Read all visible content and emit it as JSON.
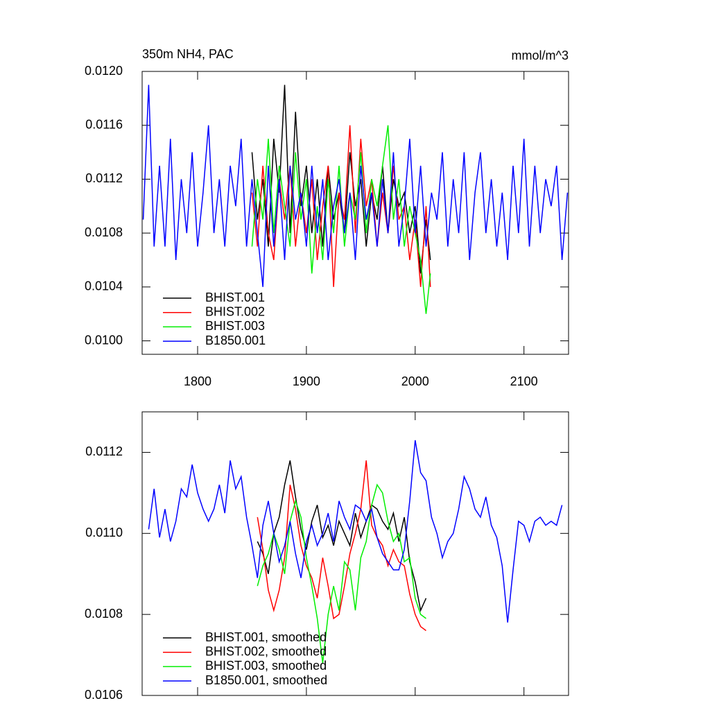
{
  "chart_data": [
    {
      "type": "line",
      "title": "350m NH4, PAC",
      "units": "mmol/m^3",
      "legend": "lower left",
      "xtick_labels": true,
      "xlim": [
        1749,
        2141
      ],
      "xticks": [
        1800,
        1900,
        2000,
        2100
      ],
      "ylim": [
        0.0099,
        0.012
      ],
      "yticks": [
        {
          "value": 0.01,
          "label": "0.0100"
        },
        0.0104,
        0.0108,
        0.0112,
        0.0116,
        {
          "value": 0.012,
          "label": "0.0120"
        }
      ],
      "series": [
        {
          "name": "BHIST.001",
          "color": "#000000",
          "x": [
            1850,
            1855,
            1860,
            1865,
            1870,
            1875,
            1880,
            1885,
            1890,
            1895,
            1900,
            1905,
            1910,
            1915,
            1920,
            1925,
            1930,
            1935,
            1940,
            1945,
            1950,
            1955,
            1960,
            1965,
            1970,
            1975,
            1980,
            1985,
            1990,
            1995,
            2000,
            2005,
            2010,
            2014
          ],
          "values": [
            0.0114,
            0.0109,
            0.0112,
            0.0107,
            0.0115,
            0.0111,
            0.0119,
            0.0108,
            0.0117,
            0.011,
            0.0113,
            0.0108,
            0.0112,
            0.0107,
            0.0113,
            0.0109,
            0.0111,
            0.0108,
            0.0114,
            0.011,
            0.0112,
            0.0107,
            0.0111,
            0.0109,
            0.0113,
            0.0108,
            0.0112,
            0.011,
            0.0111,
            0.0108,
            0.011,
            0.0105,
            0.0109,
            0.0106
          ]
        },
        {
          "name": "BHIST.002",
          "color": "#ff0000",
          "x": [
            1850,
            1855,
            1860,
            1865,
            1870,
            1875,
            1880,
            1885,
            1890,
            1895,
            1900,
            1905,
            1910,
            1915,
            1920,
            1925,
            1930,
            1935,
            1940,
            1945,
            1950,
            1955,
            1960,
            1965,
            1970,
            1975,
            1980,
            1985,
            1990,
            1995,
            2000,
            2005,
            2010,
            2014
          ],
          "values": [
            0.0111,
            0.0107,
            0.0113,
            0.0108,
            0.0106,
            0.0112,
            0.0109,
            0.0113,
            0.0107,
            0.0111,
            0.0108,
            0.0112,
            0.0106,
            0.011,
            0.0113,
            0.0104,
            0.0111,
            0.0109,
            0.0116,
            0.0108,
            0.0115,
            0.011,
            0.0112,
            0.0107,
            0.0111,
            0.0108,
            0.0113,
            0.0109,
            0.011,
            0.0106,
            0.0109,
            0.0104,
            0.011,
            0.0104
          ]
        },
        {
          "name": "BHIST.003",
          "color": "#00ee00",
          "x": [
            1850,
            1855,
            1860,
            1865,
            1870,
            1875,
            1880,
            1885,
            1890,
            1895,
            1900,
            1905,
            1910,
            1915,
            1920,
            1925,
            1930,
            1935,
            1940,
            1945,
            1950,
            1955,
            1960,
            1965,
            1970,
            1975,
            1980,
            1985,
            1990,
            1995,
            2000,
            2005,
            2010,
            2014
          ],
          "values": [
            0.0107,
            0.0112,
            0.0109,
            0.0115,
            0.0108,
            0.0113,
            0.011,
            0.0107,
            0.0114,
            0.0109,
            0.0112,
            0.0105,
            0.011,
            0.0106,
            0.0112,
            0.0108,
            0.0113,
            0.0107,
            0.0111,
            0.0109,
            0.0114,
            0.0108,
            0.0112,
            0.011,
            0.0113,
            0.0116,
            0.0109,
            0.0112,
            0.0107,
            0.011,
            0.0108,
            0.0106,
            0.0102,
            0.0105
          ]
        },
        {
          "name": "B1850.001",
          "color": "#0000ff",
          "x": [
            1750,
            1755,
            1760,
            1765,
            1770,
            1775,
            1780,
            1785,
            1790,
            1795,
            1800,
            1805,
            1810,
            1815,
            1820,
            1825,
            1830,
            1835,
            1840,
            1845,
            1850,
            1855,
            1860,
            1865,
            1870,
            1875,
            1880,
            1885,
            1890,
            1895,
            1900,
            1905,
            1910,
            1915,
            1920,
            1925,
            1930,
            1935,
            1940,
            1945,
            1950,
            1955,
            1960,
            1965,
            1970,
            1975,
            1980,
            1985,
            1990,
            1995,
            2000,
            2005,
            2010,
            2015,
            2020,
            2025,
            2030,
            2035,
            2040,
            2045,
            2050,
            2055,
            2060,
            2065,
            2070,
            2075,
            2080,
            2085,
            2090,
            2095,
            2100,
            2105,
            2110,
            2115,
            2120,
            2125,
            2130,
            2135,
            2140
          ],
          "values": [
            0.0109,
            0.0119,
            0.0107,
            0.0113,
            0.0107,
            0.0115,
            0.0106,
            0.0112,
            0.0108,
            0.0114,
            0.0107,
            0.0111,
            0.0116,
            0.0108,
            0.0112,
            0.0107,
            0.0113,
            0.011,
            0.0115,
            0.0107,
            0.0112,
            0.0108,
            0.0104,
            0.0113,
            0.0107,
            0.0112,
            0.0106,
            0.0113,
            0.0109,
            0.0111,
            0.0107,
            0.0113,
            0.0108,
            0.0112,
            0.0106,
            0.011,
            0.0112,
            0.0108,
            0.0111,
            0.0106,
            0.0113,
            0.0109,
            0.0111,
            0.0107,
            0.0112,
            0.0108,
            0.0114,
            0.0107,
            0.011,
            0.0115,
            0.0108,
            0.0113,
            0.0107,
            0.0111,
            0.0109,
            0.0114,
            0.0107,
            0.0112,
            0.0108,
            0.0114,
            0.0106,
            0.0111,
            0.0114,
            0.0108,
            0.0112,
            0.0107,
            0.0111,
            0.0106,
            0.0113,
            0.0108,
            0.0115,
            0.0107,
            0.0113,
            0.0108,
            0.0112,
            0.011,
            0.0113,
            0.0106,
            0.0111
          ]
        }
      ]
    },
    {
      "type": "line",
      "legend": "lower left",
      "xtick_labels": false,
      "xlim": [
        1749,
        2141
      ],
      "xticks": [
        1800,
        1900,
        2000,
        2100
      ],
      "ylim": [
        0.0106,
        0.0113
      ],
      "yticks": [
        0.0106,
        0.0108,
        {
          "value": 0.011,
          "label": "0.0110"
        },
        0.0112
      ],
      "series": [
        {
          "name": "BHIST.001, smoothed",
          "color": "#000000",
          "x": [
            1855,
            1860,
            1865,
            1870,
            1875,
            1880,
            1885,
            1890,
            1895,
            1900,
            1905,
            1910,
            1915,
            1920,
            1925,
            1930,
            1935,
            1940,
            1945,
            1950,
            1955,
            1960,
            1965,
            1970,
            1975,
            1980,
            1985,
            1990,
            1995,
            2000,
            2005,
            2010
          ],
          "values": [
            0.01098,
            0.01095,
            0.0109,
            0.011,
            0.01104,
            0.01112,
            0.01118,
            0.01109,
            0.01101,
            0.01096,
            0.01103,
            0.01107,
            0.01099,
            0.01102,
            0.01097,
            0.01103,
            0.011,
            0.01097,
            0.01105,
            0.01099,
            0.01103,
            0.01107,
            0.01106,
            0.01103,
            0.01101,
            0.01105,
            0.01098,
            0.01104,
            0.01093,
            0.01088,
            0.01081,
            0.01084
          ]
        },
        {
          "name": "BHIST.002, smoothed",
          "color": "#ff0000",
          "x": [
            1855,
            1860,
            1865,
            1870,
            1875,
            1880,
            1885,
            1890,
            1895,
            1900,
            1905,
            1910,
            1915,
            1920,
            1925,
            1930,
            1935,
            1940,
            1945,
            1950,
            1955,
            1960,
            1965,
            1970,
            1975,
            1980,
            1985,
            1990,
            1995,
            2000,
            2005,
            2010
          ],
          "values": [
            0.01104,
            0.01096,
            0.01086,
            0.01081,
            0.01086,
            0.01094,
            0.01112,
            0.01106,
            0.01097,
            0.01092,
            0.01089,
            0.01084,
            0.01094,
            0.01087,
            0.01079,
            0.0108,
            0.01087,
            0.01095,
            0.011,
            0.01106,
            0.01118,
            0.01102,
            0.01099,
            0.01097,
            0.01092,
            0.01096,
            0.01093,
            0.01092,
            0.01085,
            0.0108,
            0.01077,
            0.01076
          ]
        },
        {
          "name": "BHIST.003, smoothed",
          "color": "#00ee00",
          "x": [
            1855,
            1860,
            1865,
            1870,
            1875,
            1880,
            1885,
            1890,
            1895,
            1900,
            1905,
            1910,
            1915,
            1920,
            1925,
            1930,
            1935,
            1940,
            1945,
            1950,
            1955,
            1960,
            1965,
            1970,
            1975,
            1980,
            1985,
            1990,
            1995,
            2000,
            2005,
            2010
          ],
          "values": [
            0.01087,
            0.01092,
            0.01095,
            0.011,
            0.01096,
            0.0109,
            0.01103,
            0.01108,
            0.01104,
            0.01094,
            0.01087,
            0.01079,
            0.01068,
            0.0108,
            0.01087,
            0.01081,
            0.01093,
            0.01091,
            0.01081,
            0.01094,
            0.01098,
            0.01107,
            0.01112,
            0.0111,
            0.01103,
            0.01098,
            0.011,
            0.01093,
            0.01094,
            0.01084,
            0.0108,
            0.01079
          ]
        },
        {
          "name": "B1850.001, smoothed",
          "color": "#0000ff",
          "x": [
            1755,
            1760,
            1765,
            1770,
            1775,
            1780,
            1785,
            1790,
            1795,
            1800,
            1805,
            1810,
            1815,
            1820,
            1825,
            1830,
            1835,
            1840,
            1845,
            1850,
            1855,
            1860,
            1865,
            1870,
            1875,
            1880,
            1885,
            1890,
            1895,
            1900,
            1905,
            1910,
            1915,
            1920,
            1925,
            1930,
            1935,
            1940,
            1945,
            1950,
            1955,
            1960,
            1965,
            1970,
            1975,
            1980,
            1985,
            1990,
            1995,
            2000,
            2005,
            2010,
            2015,
            2020,
            2025,
            2030,
            2035,
            2040,
            2045,
            2050,
            2055,
            2060,
            2065,
            2070,
            2075,
            2080,
            2085,
            2090,
            2095,
            2100,
            2105,
            2110,
            2115,
            2120,
            2125,
            2130,
            2135
          ],
          "values": [
            0.01101,
            0.01111,
            0.01099,
            0.01106,
            0.01098,
            0.01103,
            0.01111,
            0.01109,
            0.01117,
            0.0111,
            0.01106,
            0.01103,
            0.01106,
            0.01112,
            0.01105,
            0.01118,
            0.01111,
            0.01114,
            0.01104,
            0.01097,
            0.01089,
            0.01102,
            0.01108,
            0.011,
            0.01093,
            0.01097,
            0.01103,
            0.01095,
            0.01089,
            0.01098,
            0.01102,
            0.01097,
            0.011,
            0.01105,
            0.01098,
            0.01108,
            0.01104,
            0.01101,
            0.01107,
            0.01106,
            0.01103,
            0.01106,
            0.01099,
            0.01095,
            0.01093,
            0.01091,
            0.01091,
            0.01096,
            0.01108,
            0.01123,
            0.01115,
            0.01113,
            0.01104,
            0.011,
            0.01094,
            0.01098,
            0.011,
            0.01106,
            0.01114,
            0.01111,
            0.01106,
            0.01104,
            0.01109,
            0.01102,
            0.01099,
            0.01092,
            0.01078,
            0.01091,
            0.01103,
            0.01102,
            0.01098,
            0.01103,
            0.01104,
            0.01102,
            0.01103,
            0.01102,
            0.01107
          ]
        }
      ]
    }
  ]
}
